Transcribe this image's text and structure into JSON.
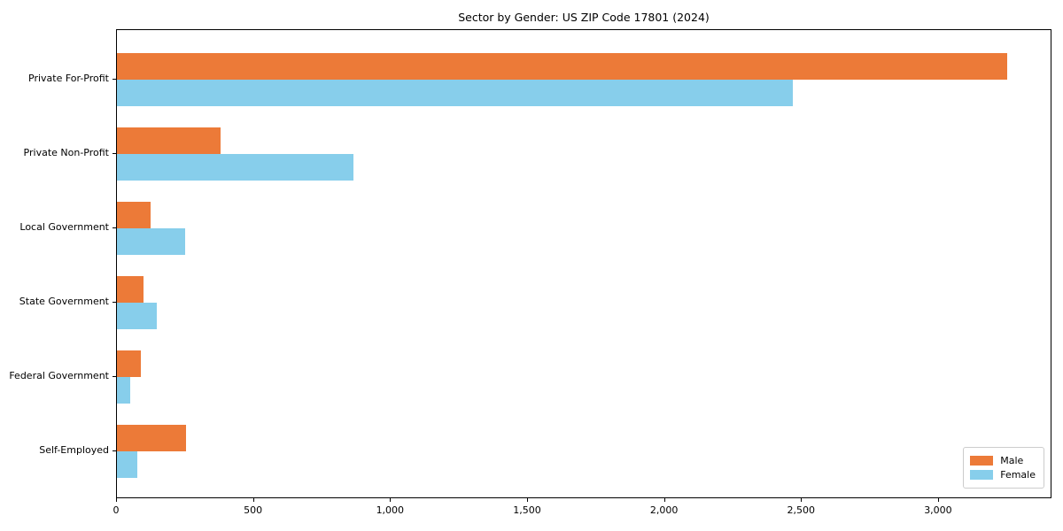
{
  "title": "Sector by Gender: US ZIP Code 17801 (2024)",
  "colors": {
    "male": "#ec7a38",
    "female": "#87ceeb",
    "axis": "#000000",
    "legend_border": "#cccccc",
    "background": "#ffffff"
  },
  "chart_data": {
    "type": "bar",
    "orientation": "horizontal",
    "title": "Sector by Gender: US ZIP Code 17801 (2024)",
    "categories": [
      "Private For-Profit",
      "Private Non-Profit",
      "Local Government",
      "State Government",
      "Federal Government",
      "Self-Employed"
    ],
    "series": [
      {
        "name": "Male",
        "color": "#ec7a38",
        "values": [
          3248,
          378,
          124,
          97,
          87,
          252
        ]
      },
      {
        "name": "Female",
        "color": "#87ceeb",
        "values": [
          2466,
          864,
          248,
          145,
          48,
          74
        ]
      }
    ],
    "xlabel": "",
    "ylabel": "",
    "xlim": [
      0,
      3414
    ],
    "xticks": [
      0,
      500,
      1000,
      1500,
      2000,
      2500,
      3000
    ],
    "xtick_labels": [
      "0",
      "500",
      "1,000",
      "1,500",
      "2,000",
      "2,500",
      "3,000"
    ],
    "grid": false,
    "legend": {
      "position": "lower right",
      "entries": [
        "Male",
        "Female"
      ]
    }
  }
}
